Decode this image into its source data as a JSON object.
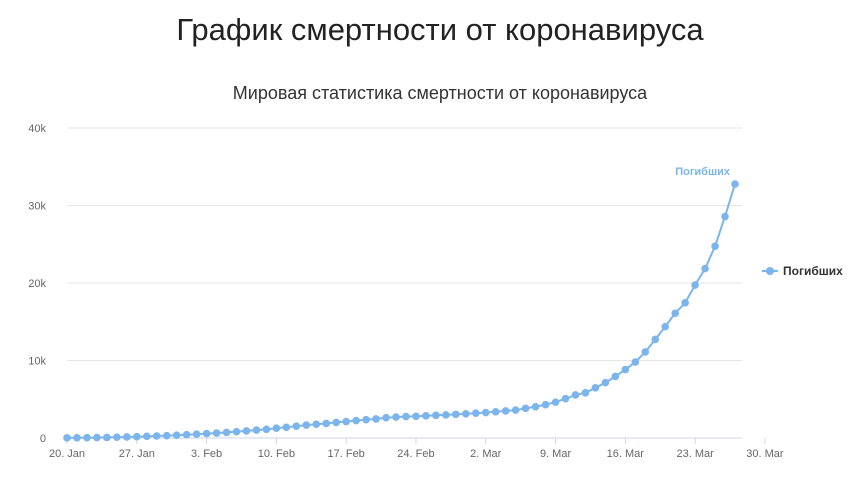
{
  "page": {
    "title": "График смертности от коронавируса"
  },
  "chart_data": {
    "type": "line",
    "title": "Мировая статистика смертности от коронавируса",
    "xlabel": "",
    "ylabel": "",
    "x_start": "2020-01-20",
    "x_tick_labels": [
      "20. Jan",
      "27. Jan",
      "3. Feb",
      "10. Feb",
      "17. Feb",
      "24. Feb",
      "2. Mar",
      "9. Mar",
      "16. Mar",
      "23. Mar",
      "30. Mar"
    ],
    "y_tick_labels": [
      "0",
      "10k",
      "20k",
      "30k",
      "40k"
    ],
    "ylim": [
      0,
      40000
    ],
    "grid": true,
    "legend_position": "right",
    "series": [
      {
        "name": "Погибших",
        "color": "#7cb5ec",
        "values": [
          17,
          25,
          41,
          56,
          80,
          106,
          132,
          170,
          213,
          259,
          304,
          362,
          426,
          492,
          565,
          638,
          724,
          813,
          910,
          1018,
          1115,
          1261,
          1383,
          1526,
          1669,
          1775,
          1873,
          2009,
          2126,
          2247,
          2360,
          2460,
          2618,
          2699,
          2763,
          2800,
          2858,
          2923,
          2977,
          3050,
          3117,
          3202,
          3285,
          3387,
          3494,
          3599,
          3827,
          4025,
          4296,
          4628,
          5075,
          5557,
          5837,
          6480,
          7133,
          7949,
          8825,
          9795,
          11104,
          12716,
          14371,
          16097,
          17438,
          19736,
          21855,
          24753,
          28577,
          32762
        ]
      }
    ]
  }
}
